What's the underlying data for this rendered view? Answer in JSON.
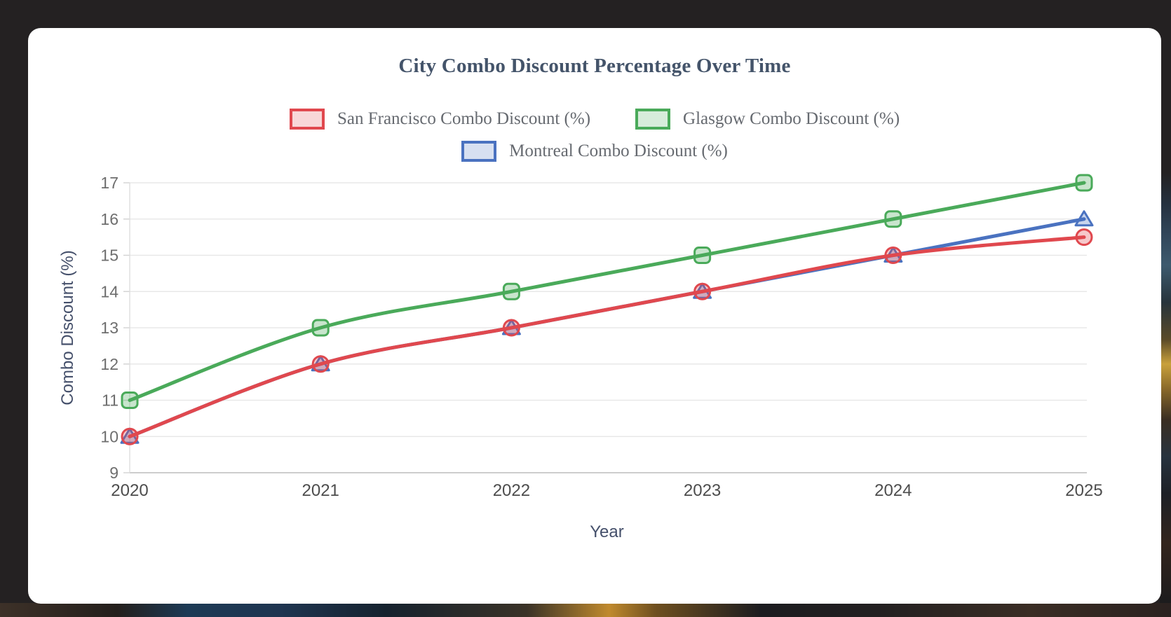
{
  "page": {
    "background_color": "#242122",
    "card_color": "#ffffff"
  },
  "chart_data": {
    "type": "line",
    "title": "City Combo Discount Percentage Over Time",
    "xlabel": "Year",
    "ylabel": "Combo Discount (%)",
    "x": [
      2020,
      2021,
      2022,
      2023,
      2024,
      2025
    ],
    "ylim": [
      9,
      17
    ],
    "ytick_step": 1,
    "grid": true,
    "legend_position": "top-center-two-rows",
    "series": [
      {
        "name": "San Francisco Combo Discount (%)",
        "values": [
          10,
          12,
          13,
          14,
          15,
          15.5
        ],
        "color": "#e0484e",
        "marker": "circle"
      },
      {
        "name": "Glasgow Combo Discount (%)",
        "values": [
          11,
          13,
          14,
          15,
          16,
          17
        ],
        "color": "#4aaa5a",
        "marker": "square"
      },
      {
        "name": "Montreal Combo Discount (%)",
        "values": [
          10,
          12,
          13,
          14,
          15,
          16
        ],
        "color": "#4a72c0",
        "marker": "triangle"
      }
    ]
  }
}
